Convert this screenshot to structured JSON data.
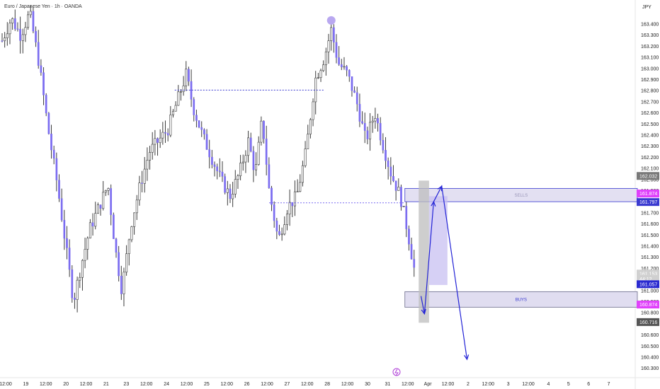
{
  "header": {
    "symbol_title": "Euro / Japanese Yen · 1h · OANDA",
    "currency": "JPY"
  },
  "chart_data": {
    "type": "candlestick",
    "title": "Euro / Japanese Yen · 1h · OANDA",
    "ylabel": "JPY",
    "ylim": [
      160.3,
      163.5
    ],
    "y_ticks": [
      "163.400",
      "163.300",
      "163.200",
      "163.100",
      "163.000",
      "162.900",
      "162.800",
      "162.700",
      "162.600",
      "162.500",
      "162.400",
      "162.300",
      "162.200",
      "162.100",
      "162.000",
      "161.900",
      "161.800",
      "161.700",
      "161.600",
      "161.500",
      "161.400",
      "161.300",
      "161.200",
      "161.100",
      "161.000",
      "160.900",
      "160.800",
      "160.700",
      "160.600",
      "160.500",
      "160.400",
      "160.300"
    ],
    "x_ticks": [
      "12:00",
      "19",
      "12:00",
      "20",
      "12:00",
      "21",
      "23",
      "12:00",
      "24",
      "12:00",
      "25",
      "12:00",
      "26",
      "12:00",
      "27",
      "12:00",
      "28",
      "12:00",
      "30",
      "31",
      "12:00",
      "Apr",
      "12:00",
      "2",
      "12:00",
      "3",
      "12:00",
      "4",
      "5",
      "6",
      "7"
    ],
    "candle_color": "#7b6cf0",
    "price_path": [
      {
        "t": 0,
        "p": 163.25
      },
      {
        "t": 0.4,
        "p": 163.45
      },
      {
        "t": 0.8,
        "p": 163.3
      },
      {
        "t": 1.2,
        "p": 163.5
      },
      {
        "t": 1.6,
        "p": 163.05
      },
      {
        "t": 2.0,
        "p": 162.45
      },
      {
        "t": 2.4,
        "p": 161.95
      },
      {
        "t": 2.8,
        "p": 161.35
      },
      {
        "t": 3.1,
        "p": 160.9
      },
      {
        "t": 3.4,
        "p": 161.2
      },
      {
        "t": 3.8,
        "p": 161.55
      },
      {
        "t": 4.2,
        "p": 161.75
      },
      {
        "t": 4.6,
        "p": 161.95
      },
      {
        "t": 4.9,
        "p": 161.4
      },
      {
        "t": 5.2,
        "p": 161.0
      },
      {
        "t": 5.6,
        "p": 161.6
      },
      {
        "t": 6.0,
        "p": 161.95
      },
      {
        "t": 6.4,
        "p": 162.25
      },
      {
        "t": 6.8,
        "p": 162.35
      },
      {
        "t": 7.2,
        "p": 162.45
      },
      {
        "t": 7.6,
        "p": 162.7
      },
      {
        "t": 8.0,
        "p": 162.95
      },
      {
        "t": 8.3,
        "p": 162.65
      },
      {
        "t": 8.7,
        "p": 162.4
      },
      {
        "t": 9.1,
        "p": 162.2
      },
      {
        "t": 9.5,
        "p": 162.0
      },
      {
        "t": 9.9,
        "p": 161.85
      },
      {
        "t": 10.3,
        "p": 162.05
      },
      {
        "t": 10.7,
        "p": 162.35
      },
      {
        "t": 11.0,
        "p": 162.05
      },
      {
        "t": 11.3,
        "p": 162.55
      },
      {
        "t": 11.6,
        "p": 161.9
      },
      {
        "t": 12.0,
        "p": 161.45
      },
      {
        "t": 12.4,
        "p": 161.75
      },
      {
        "t": 12.8,
        "p": 161.85
      },
      {
        "t": 13.2,
        "p": 162.25
      },
      {
        "t": 13.6,
        "p": 162.9
      },
      {
        "t": 14.0,
        "p": 163.1
      },
      {
        "t": 14.3,
        "p": 163.35
      },
      {
        "t": 14.6,
        "p": 163.05
      },
      {
        "t": 15.0,
        "p": 162.95
      },
      {
        "t": 15.4,
        "p": 162.7
      },
      {
        "t": 15.8,
        "p": 162.35
      },
      {
        "t": 16.2,
        "p": 162.6
      },
      {
        "t": 16.5,
        "p": 162.35
      },
      {
        "t": 16.9,
        "p": 162.05
      },
      {
        "t": 17.3,
        "p": 161.85
      },
      {
        "t": 17.6,
        "p": 161.55
      },
      {
        "t": 17.9,
        "p": 161.2
      }
    ],
    "current_time_index": 17.9,
    "swing_marker": {
      "t": 14.3,
      "price": 163.42,
      "color": "#b9a8f0"
    },
    "horizontal_levels": [
      {
        "price": 162.805,
        "t_start": 7.5,
        "t_end": 14.0,
        "color": "#3a3ad0"
      },
      {
        "price": 161.79,
        "t_start": 11.6,
        "t_end": 17.5,
        "color": "#7b6cf0"
      }
    ],
    "zones": [
      {
        "label": "SELLS",
        "price_top": 161.92,
        "price_bottom": 161.8,
        "t_start": 17.5,
        "t_end": 27.6,
        "fill": "#e3e0f2",
        "border": "#3a3ad0",
        "text_color": "#9a96b8"
      },
      {
        "label": "BUYS",
        "price_top": 160.99,
        "price_bottom": 160.85,
        "t_start": 17.5,
        "t_end": 27.6,
        "fill": "#e0ddf0",
        "border": "#6a6a8a",
        "text_color": "#3a3ad0"
      }
    ],
    "projection_boxes": [
      {
        "t_start": 18.1,
        "t_end": 18.55,
        "price_top": 161.99,
        "price_bottom": 160.71,
        "fill": "#bdbdbd"
      },
      {
        "t_start": 18.55,
        "t_end": 19.35,
        "price_top": 161.85,
        "price_bottom": 161.05,
        "fill": "#c8c0f2"
      }
    ],
    "projected_path": [
      {
        "t": 18.2,
        "p": 160.95
      },
      {
        "t": 18.35,
        "p": 160.79
      },
      {
        "t": 18.75,
        "p": 161.8
      },
      {
        "t": 19.1,
        "p": 161.94
      },
      {
        "t": 20.2,
        "p": 160.38
      }
    ],
    "projection_color": "#2323d6",
    "price_labels": [
      {
        "text": "162.032",
        "price": 162.032,
        "bg": "#787878"
      },
      {
        "text": "161.874",
        "price": 161.874,
        "bg": "#e040fb"
      },
      {
        "text": "161.797",
        "price": 161.797,
        "bg": "#3a3ad0"
      },
      {
        "text": "161.153",
        "price": 161.153,
        "bg": "#d0d0d0",
        "fg": "#222222"
      },
      {
        "text": "44:12",
        "price": 161.105,
        "bg": "#d0d0d0",
        "fg": "#222222"
      },
      {
        "text": "161.057",
        "price": 161.057,
        "bg": "#2a2ad0"
      },
      {
        "text": "160.874",
        "price": 160.874,
        "bg": "#e040fb"
      },
      {
        "text": "160.716",
        "price": 160.716,
        "bg": "#555555"
      }
    ]
  }
}
